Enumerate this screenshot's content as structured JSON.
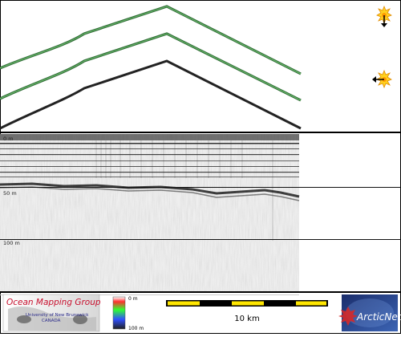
{
  "window": {
    "border_color": "#000000",
    "background": "#ffffff"
  },
  "track_view": {
    "lines": [
      {
        "name": "upper-track",
        "color": "#3d8a47"
      },
      {
        "name": "middle-track",
        "color": "#3d8a47"
      },
      {
        "name": "lower-track",
        "color": "#222222"
      }
    ],
    "icons": [
      {
        "name": "sun-icon",
        "arrow": "down"
      },
      {
        "name": "sun-icon",
        "arrow": "left"
      }
    ]
  },
  "profile": {
    "depth_labels": [
      "0 m",
      "50 m",
      "100 m"
    ],
    "background": "#f0f0f0"
  },
  "footer": {
    "logo_title": "Ocean Mapping Group",
    "logo_sub1": "University of New Brunswick",
    "logo_sub2": "CANADA",
    "colorbar_top": "0 m",
    "colorbar_bottom": "100 m",
    "scale_label": "10 km",
    "scale_colors": [
      "#ffe600",
      "#000000"
    ],
    "arctic_logo": "ArcticNet"
  }
}
